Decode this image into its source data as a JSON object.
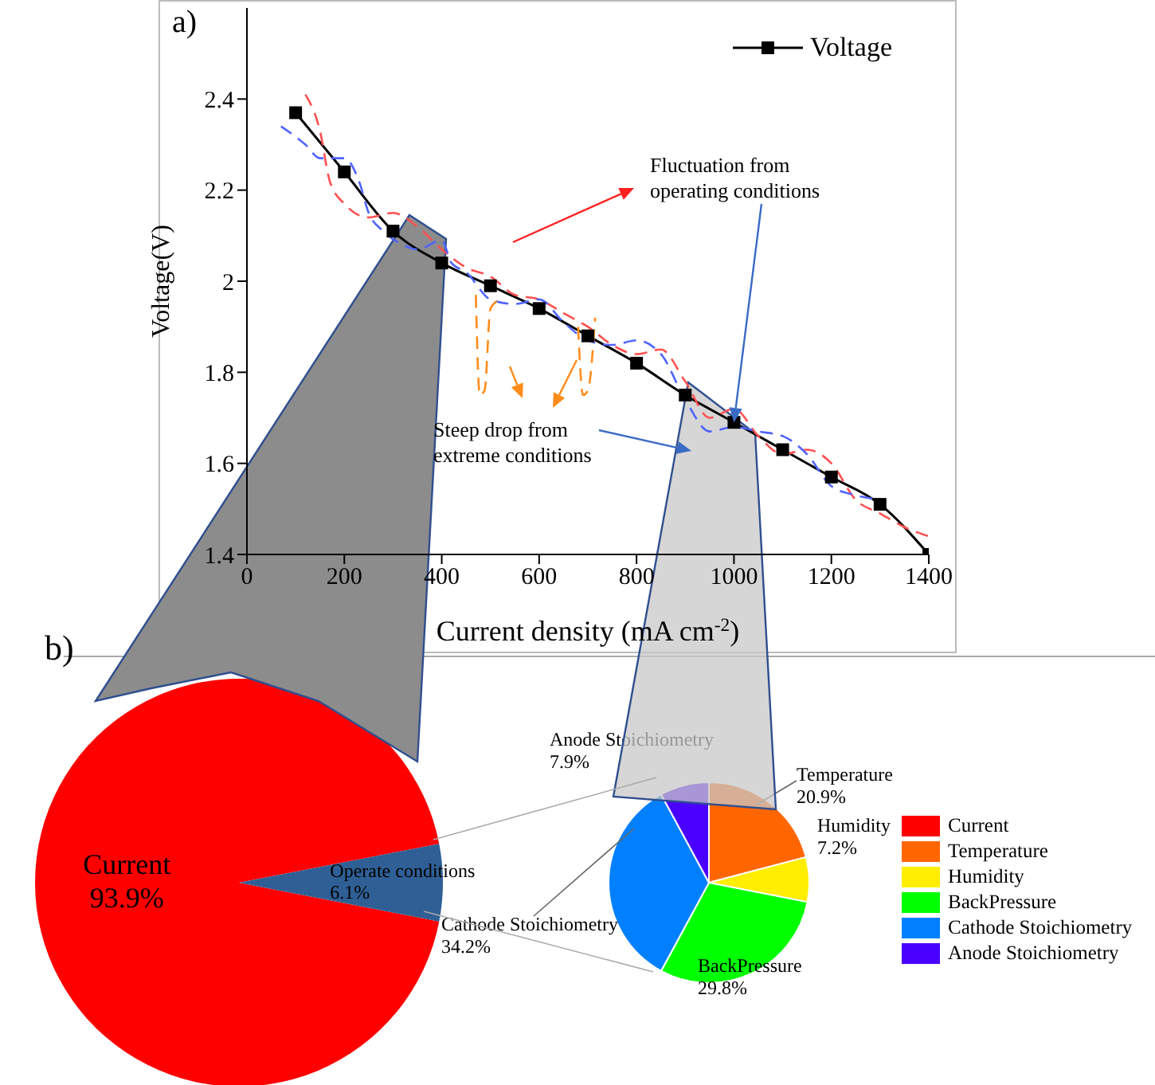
{
  "chart_data": [
    {
      "type": "line",
      "xlabel": "Current density (mA cm$^{-2}$)",
      "ylabel": "Voltage(V)",
      "xlim": [
        0,
        1400
      ],
      "xticks": [
        0,
        200,
        400,
        600,
        800,
        1000,
        1200,
        1400
      ],
      "ylim": [
        1.4,
        2.6
      ],
      "yticks": [
        1.4,
        1.6,
        1.8,
        2.0,
        2.2,
        2.4
      ],
      "legend": "top right",
      "annotations": [
        "a)",
        {
          "text": "Fluctuation from operating conditions",
          "x": 1000,
          "y": 1.69
        },
        "Steep drop from extreme conditions"
      ],
      "series": [
        {
          "name": "Voltage",
          "color": "#000000",
          "marker": "square",
          "line_style": "solid",
          "x": [
            100,
            200,
            300,
            400,
            500,
            600,
            700,
            800,
            900,
            1000,
            1100,
            1200,
            1300,
            1400
          ],
          "values": [
            2.37,
            2.24,
            2.11,
            2.04,
            1.99,
            1.94,
            1.88,
            1.82,
            1.75,
            1.69,
            1.63,
            1.57,
            1.51,
            1.4
          ]
        },
        {
          "color": "#ff5050",
          "marker": "none",
          "line_style": "dashed",
          "x": [
            120,
            150,
            170,
            200,
            250,
            300,
            350,
            400,
            450,
            500,
            550,
            600,
            650,
            700,
            750,
            800,
            850,
            900,
            950,
            1000,
            1050,
            1100,
            1150,
            1200,
            1250,
            1300,
            1350,
            1400
          ],
          "values": [
            2.41,
            2.33,
            2.22,
            2.17,
            2.14,
            2.15,
            2.12,
            2.07,
            2.03,
            2.01,
            1.97,
            1.96,
            1.93,
            1.9,
            1.86,
            1.84,
            1.85,
            1.78,
            1.7,
            1.72,
            1.66,
            1.62,
            1.63,
            1.6,
            1.52,
            1.49,
            1.46,
            1.44
          ]
        },
        {
          "color": "#5064ff",
          "marker": "none",
          "line_style": "dashed",
          "x": [
            70,
            120,
            150,
            200,
            230,
            250,
            280,
            320,
            350,
            400,
            420,
            450,
            500,
            550,
            600,
            650,
            700,
            750,
            800,
            850,
            900,
            950,
            1000,
            1050,
            1100,
            1150,
            1200,
            1250,
            1300
          ],
          "values": [
            2.34,
            2.3,
            2.27,
            2.27,
            2.22,
            2.15,
            2.11,
            2.08,
            2.07,
            2.09,
            2.04,
            2.02,
            1.96,
            1.95,
            1.96,
            1.91,
            1.87,
            1.86,
            1.87,
            1.84,
            1.74,
            1.67,
            1.68,
            1.67,
            1.66,
            1.62,
            1.55,
            1.53,
            1.52
          ]
        },
        {
          "color": "#ff8c1a",
          "marker": "none",
          "line_style": "dashed",
          "x": [
            470,
            478,
            488,
            500,
            520,
            600,
            680,
            690,
            700,
            715
          ],
          "values": [
            1.97,
            1.75,
            1.76,
            1.94,
            1.96,
            null,
            1.9,
            1.75,
            1.76,
            1.92
          ]
        }
      ]
    },
    {
      "type": "pie",
      "annotations": [
        "b)"
      ],
      "data_labels": true,
      "categories": [
        "Current",
        "Operate conditions"
      ],
      "values": [
        93.9,
        6.1
      ],
      "value_labels": [
        "93.9%",
        "6.1%"
      ],
      "colors": [
        "#ff0000",
        "#2f5f95"
      ]
    },
    {
      "type": "pie",
      "data_labels": true,
      "legend": "right",
      "categories": [
        "Temperature",
        "Humidity",
        "BackPressure",
        "Cathode Stoichiometry",
        "Anode Stoichiometry"
      ],
      "values": [
        20.9,
        7.2,
        29.8,
        34.2,
        7.9
      ],
      "value_labels": [
        "20.9%",
        "7.2%",
        "29.8%",
        "34.2%",
        "7.9%"
      ],
      "colors": [
        "#ff6600",
        "#ffee00",
        "#00ff00",
        "#0080ff",
        "#4a00ff"
      ]
    }
  ]
}
